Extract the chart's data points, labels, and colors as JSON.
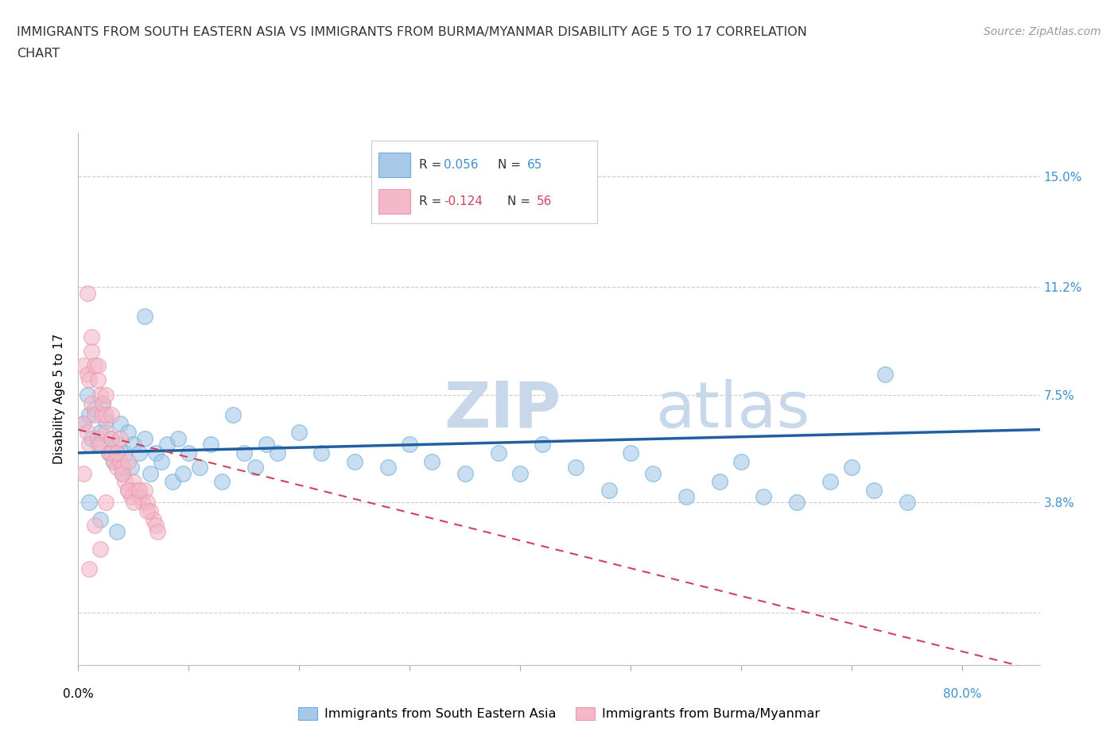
{
  "title_line1": "IMMIGRANTS FROM SOUTH EASTERN ASIA VS IMMIGRANTS FROM BURMA/MYANMAR DISABILITY AGE 5 TO 17 CORRELATION",
  "title_line2": "CHART",
  "source": "Source: ZipAtlas.com",
  "ylabel_label": "Disability Age 5 to 17",
  "ytick_vals": [
    0.0,
    0.038,
    0.075,
    0.112,
    0.15
  ],
  "ytick_labels": [
    "",
    "3.8%",
    "7.5%",
    "11.2%",
    "15.0%"
  ],
  "xtick_vals": [
    0.0,
    0.1,
    0.2,
    0.3,
    0.4,
    0.5,
    0.6,
    0.7,
    0.8
  ],
  "xlim": [
    0.0,
    0.87
  ],
  "ylim": [
    -0.018,
    0.165
  ],
  "legend_r1_pre": "R = ",
  "legend_r1_val": "0.056",
  "legend_n1_pre": "  N = ",
  "legend_n1_val": "65",
  "legend_r2_pre": "R = ",
  "legend_r2_val": "-0.124",
  "legend_n2_pre": "  N = ",
  "legend_n2_val": "56",
  "color_blue_fill": "#a8c8e8",
  "color_blue_edge": "#6baed6",
  "color_pink_fill": "#f4b8c8",
  "color_pink_edge": "#e898b0",
  "color_blue_line": "#2060a0",
  "color_pink_line": "#d04060",
  "color_rval_blue": "#4090d0",
  "color_rval_pink": "#d04060",
  "watermark_color": "#c8d8ea",
  "blue_line_x0": 0.0,
  "blue_line_x1": 0.87,
  "blue_line_y0": 0.055,
  "blue_line_y1": 0.063,
  "pink_line_x0": 0.0,
  "pink_line_x1": 0.87,
  "pink_line_y0": 0.063,
  "pink_line_y1": -0.02,
  "blue_scatter_x": [
    0.005,
    0.008,
    0.01,
    0.012,
    0.015,
    0.018,
    0.02,
    0.022,
    0.025,
    0.028,
    0.03,
    0.032,
    0.035,
    0.038,
    0.04,
    0.042,
    0.045,
    0.048,
    0.05,
    0.055,
    0.06,
    0.065,
    0.07,
    0.075,
    0.08,
    0.085,
    0.09,
    0.095,
    0.1,
    0.11,
    0.12,
    0.13,
    0.14,
    0.15,
    0.16,
    0.17,
    0.18,
    0.2,
    0.22,
    0.25,
    0.28,
    0.3,
    0.32,
    0.35,
    0.38,
    0.4,
    0.42,
    0.45,
    0.48,
    0.5,
    0.52,
    0.55,
    0.58,
    0.6,
    0.62,
    0.65,
    0.68,
    0.7,
    0.72,
    0.75,
    0.01,
    0.02,
    0.035,
    0.06,
    0.73
  ],
  "blue_scatter_y": [
    0.065,
    0.075,
    0.068,
    0.06,
    0.07,
    0.058,
    0.062,
    0.072,
    0.066,
    0.055,
    0.06,
    0.052,
    0.058,
    0.065,
    0.048,
    0.055,
    0.062,
    0.05,
    0.058,
    0.055,
    0.06,
    0.048,
    0.055,
    0.052,
    0.058,
    0.045,
    0.06,
    0.048,
    0.055,
    0.05,
    0.058,
    0.045,
    0.068,
    0.055,
    0.05,
    0.058,
    0.055,
    0.062,
    0.055,
    0.052,
    0.05,
    0.058,
    0.052,
    0.048,
    0.055,
    0.048,
    0.058,
    0.05,
    0.042,
    0.055,
    0.048,
    0.04,
    0.045,
    0.052,
    0.04,
    0.038,
    0.045,
    0.05,
    0.042,
    0.038,
    0.038,
    0.032,
    0.028,
    0.102,
    0.082
  ],
  "pink_scatter_x": [
    0.005,
    0.008,
    0.01,
    0.012,
    0.015,
    0.018,
    0.02,
    0.022,
    0.025,
    0.028,
    0.03,
    0.032,
    0.035,
    0.038,
    0.04,
    0.042,
    0.045,
    0.048,
    0.05,
    0.052,
    0.055,
    0.058,
    0.06,
    0.062,
    0.065,
    0.068,
    0.07,
    0.072,
    0.005,
    0.008,
    0.01,
    0.012,
    0.015,
    0.018,
    0.02,
    0.022,
    0.025,
    0.03,
    0.035,
    0.04,
    0.045,
    0.05,
    0.008,
    0.012,
    0.018,
    0.025,
    0.03,
    0.038,
    0.045,
    0.055,
    0.062,
    0.005,
    0.01,
    0.015,
    0.02,
    0.025
  ],
  "pink_scatter_y": [
    0.065,
    0.062,
    0.058,
    0.072,
    0.068,
    0.06,
    0.058,
    0.068,
    0.062,
    0.055,
    0.055,
    0.052,
    0.05,
    0.052,
    0.05,
    0.045,
    0.042,
    0.04,
    0.045,
    0.042,
    0.04,
    0.038,
    0.042,
    0.038,
    0.035,
    0.032,
    0.03,
    0.028,
    0.085,
    0.082,
    0.08,
    0.09,
    0.085,
    0.08,
    0.075,
    0.072,
    0.068,
    0.06,
    0.055,
    0.048,
    0.042,
    0.038,
    0.11,
    0.095,
    0.085,
    0.075,
    0.068,
    0.06,
    0.052,
    0.042,
    0.035,
    0.048,
    0.015,
    0.03,
    0.022,
    0.038
  ]
}
